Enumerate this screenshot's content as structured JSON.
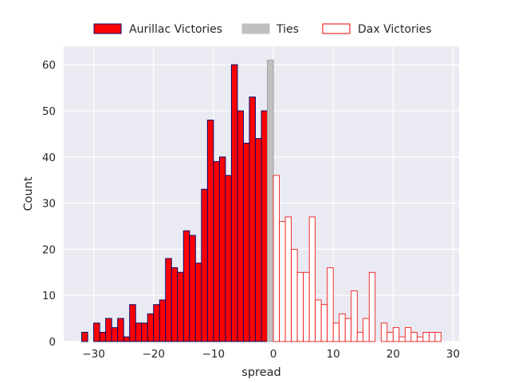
{
  "chart_data": {
    "type": "histogram",
    "xlabel": "spread",
    "ylabel": "Count",
    "xlim": [
      -35,
      31
    ],
    "ylim": [
      0,
      64
    ],
    "bin_width": 1,
    "xticks": [
      -30,
      -20,
      -10,
      0,
      10,
      20,
      30
    ],
    "xtick_labels": [
      "−30",
      "−20",
      "−10",
      "0",
      "10",
      "20",
      "30"
    ],
    "yticks": [
      0,
      10,
      20,
      30,
      40,
      50,
      60
    ],
    "ytick_labels": [
      "0",
      "10",
      "20",
      "30",
      "40",
      "50",
      "60"
    ],
    "legend_position": "top-center",
    "colors": {
      "background": "#eaeaf2",
      "grid": "#ffffff",
      "aurillac_fill": "#ff0000",
      "aurillac_edge": "#0a0a6e",
      "ties_fill": "#c0c0c0",
      "ties_edge": "#a0a0a0",
      "dax_fill": "#ffffff",
      "dax_edge": "#ee0000"
    },
    "series": [
      {
        "name": "Aurillac Victories",
        "key": "aurillac",
        "bins": [
          {
            "x": -32,
            "count": 2
          },
          {
            "x": -31,
            "count": 0
          },
          {
            "x": -30,
            "count": 4
          },
          {
            "x": -29,
            "count": 2
          },
          {
            "x": -28,
            "count": 5
          },
          {
            "x": -27,
            "count": 3
          },
          {
            "x": -26,
            "count": 5
          },
          {
            "x": -25,
            "count": 1
          },
          {
            "x": -24,
            "count": 8
          },
          {
            "x": -23,
            "count": 4
          },
          {
            "x": -22,
            "count": 4
          },
          {
            "x": -21,
            "count": 6
          },
          {
            "x": -20,
            "count": 8
          },
          {
            "x": -19,
            "count": 9
          },
          {
            "x": -18,
            "count": 18
          },
          {
            "x": -17,
            "count": 16
          },
          {
            "x": -16,
            "count": 15
          },
          {
            "x": -15,
            "count": 24
          },
          {
            "x": -14,
            "count": 23
          },
          {
            "x": -13,
            "count": 17
          },
          {
            "x": -12,
            "count": 33
          },
          {
            "x": -11,
            "count": 48
          },
          {
            "x": -10,
            "count": 39
          },
          {
            "x": -9,
            "count": 40
          },
          {
            "x": -8,
            "count": 36
          },
          {
            "x": -7,
            "count": 60
          },
          {
            "x": -6,
            "count": 50
          },
          {
            "x": -5,
            "count": 43
          },
          {
            "x": -4,
            "count": 53
          },
          {
            "x": -3,
            "count": 44
          },
          {
            "x": -2,
            "count": 50
          }
        ]
      },
      {
        "name": "Ties",
        "key": "ties",
        "bins": [
          {
            "x": -1,
            "count": 61
          }
        ]
      },
      {
        "name": "Dax Victories",
        "key": "dax",
        "bins": [
          {
            "x": 0,
            "count": 36
          },
          {
            "x": 1,
            "count": 26
          },
          {
            "x": 2,
            "count": 27
          },
          {
            "x": 3,
            "count": 20
          },
          {
            "x": 4,
            "count": 15
          },
          {
            "x": 5,
            "count": 15
          },
          {
            "x": 6,
            "count": 27
          },
          {
            "x": 7,
            "count": 9
          },
          {
            "x": 8,
            "count": 8
          },
          {
            "x": 9,
            "count": 16
          },
          {
            "x": 10,
            "count": 4
          },
          {
            "x": 11,
            "count": 6
          },
          {
            "x": 12,
            "count": 5
          },
          {
            "x": 13,
            "count": 11
          },
          {
            "x": 14,
            "count": 2
          },
          {
            "x": 15,
            "count": 5
          },
          {
            "x": 16,
            "count": 15
          },
          {
            "x": 17,
            "count": 0
          },
          {
            "x": 18,
            "count": 4
          },
          {
            "x": 19,
            "count": 2
          },
          {
            "x": 20,
            "count": 3
          },
          {
            "x": 21,
            "count": 1
          },
          {
            "x": 22,
            "count": 3
          },
          {
            "x": 23,
            "count": 2
          },
          {
            "x": 24,
            "count": 1
          },
          {
            "x": 25,
            "count": 2
          },
          {
            "x": 26,
            "count": 2
          },
          {
            "x": 27,
            "count": 2
          }
        ]
      }
    ]
  }
}
